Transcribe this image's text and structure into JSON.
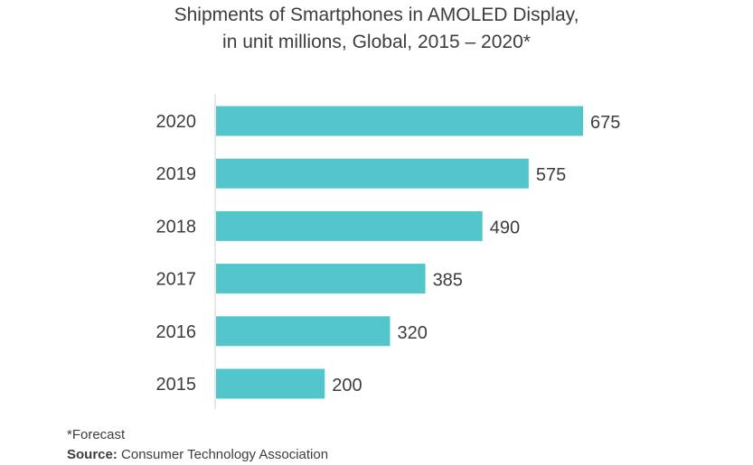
{
  "chart_data": {
    "type": "bar",
    "orientation": "horizontal",
    "title": "Shipments of Smartphones in AMOLED Display,",
    "subtitle": "in unit millions, Global, 2015 – 2020*",
    "categories": [
      "2020",
      "2019",
      "2018",
      "2017",
      "2016",
      "2015"
    ],
    "values": [
      675,
      575,
      490,
      385,
      320,
      200
    ],
    "xlim": [
      0,
      675
    ],
    "bar_color": "#53c6cb",
    "grid": false,
    "legend": "none"
  },
  "footnote": "*Forecast",
  "source": {
    "label": "Source:",
    "text": "Consumer Technology Association"
  }
}
